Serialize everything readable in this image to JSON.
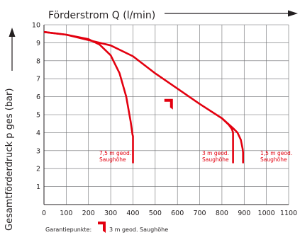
{
  "chart_data": {
    "type": "line",
    "title": "",
    "xlabel": "Förderstrom Q (l/min)",
    "ylabel": "Gesamtförderdruck p ges (bar)",
    "xlim": [
      0,
      1100
    ],
    "ylim": [
      0,
      10
    ],
    "xticks": [
      0,
      100,
      200,
      300,
      400,
      500,
      600,
      700,
      800,
      900,
      1000,
      1100
    ],
    "yticks": [
      1,
      2,
      3,
      4,
      5,
      6,
      7,
      8,
      9,
      10
    ],
    "grid": true,
    "series": [
      {
        "name": "7,5 m geod. Saughöhe",
        "color": "#e3000f",
        "x": [
          0,
          100,
          200,
          250,
          300,
          340,
          370,
          390,
          398,
          400,
          400
        ],
        "y": [
          9.6,
          9.45,
          9.2,
          8.9,
          8.3,
          7.3,
          6.0,
          4.6,
          3.9,
          3.8,
          2.3
        ]
      },
      {
        "name": "3 m geod. Saughöhe",
        "color": "#e3000f",
        "x": [
          0,
          100,
          200,
          300,
          400,
          500,
          600,
          700,
          800,
          830,
          845,
          850,
          850
        ],
        "y": [
          9.6,
          9.45,
          9.15,
          8.85,
          8.25,
          7.3,
          6.45,
          5.6,
          4.8,
          4.45,
          4.2,
          4.0,
          2.3
        ]
      },
      {
        "name": "1,5 m geod. Saughöhe",
        "color": "#e3000f",
        "x": [
          800,
          850,
          870,
          885,
          893,
          895,
          895
        ],
        "y": [
          4.8,
          4.25,
          4.0,
          3.6,
          3.1,
          2.9,
          2.3
        ]
      }
    ],
    "curve_labels": [
      {
        "line1": "7,5 m geod.",
        "line2": "Saughöhe"
      },
      {
        "line1": "3 m geod.",
        "line2": "Saughöhe"
      },
      {
        "line1": "1,5 m geod.",
        "line2": "Saughöhe"
      }
    ],
    "guarantee_point": {
      "x": 570,
      "y": 5.6
    },
    "legend": {
      "label": "Garantiepunkte:",
      "entry": "3 m geod. Saughöhe"
    }
  }
}
